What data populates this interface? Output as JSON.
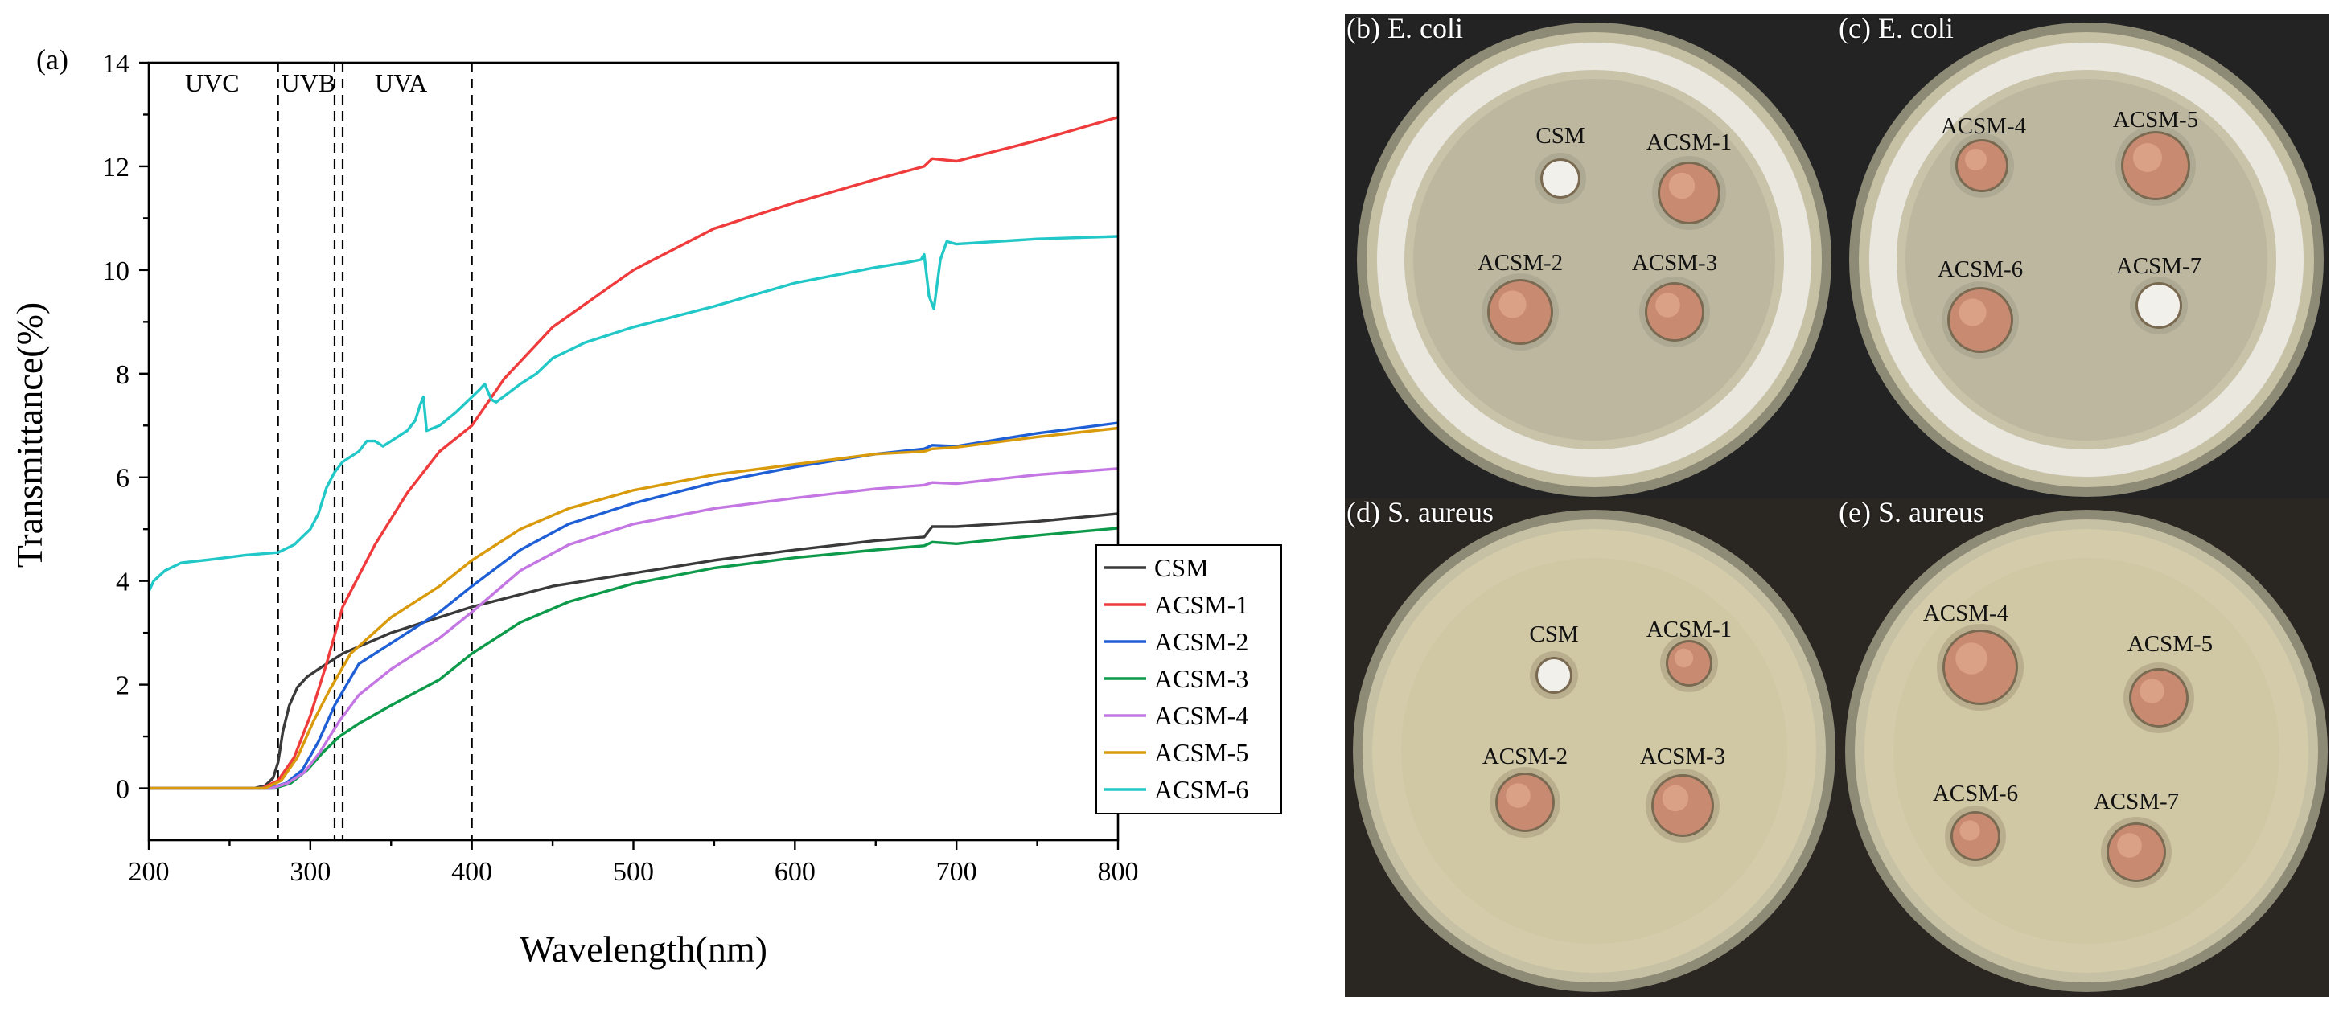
{
  "figure": {
    "panel_a_label": "(a)",
    "photos": [
      {
        "id": "b",
        "label": "(b) E. coli",
        "bacteria": "E. coli",
        "style": "ecoli",
        "samples": [
          "CSM",
          "ACSM-1",
          "ACSM-2",
          "ACSM-3"
        ]
      },
      {
        "id": "c",
        "label": "(c) E. coli",
        "bacteria": "E. coli",
        "style": "ecoli",
        "samples": [
          "ACSM-4",
          "ACSM-5",
          "ACSM-6",
          "ACSM-7"
        ]
      },
      {
        "id": "d",
        "label": "(d)  S. aureus",
        "bacteria": "S. aureus",
        "style": "saureus",
        "samples": [
          "CSM",
          "ACSM-1",
          "ACSM-2",
          "ACSM-3"
        ]
      },
      {
        "id": "e",
        "label": "(e) S. aureus",
        "bacteria": "S. aureus",
        "style": "saureus",
        "samples": [
          "ACSM-4",
          "ACSM-5",
          "ACSM-6",
          "ACSM-7"
        ]
      }
    ]
  },
  "colors": {
    "CSM": "#3a3a3a",
    "ACSM-1": "#ef3b3b",
    "ACSM-2": "#1f5fd6",
    "ACSM-3": "#0d9a4a",
    "ACSM-4": "#c477e3",
    "ACSM-5": "#d99a0b",
    "ACSM-6": "#22c8c8"
  },
  "chart_data": {
    "type": "line",
    "title": "",
    "xlabel": "Wavelength(nm)",
    "ylabel": "Transmittance(%)",
    "xlim": [
      200,
      800
    ],
    "ylim": [
      -1,
      14
    ],
    "xticks": [
      200,
      300,
      400,
      500,
      600,
      700,
      800
    ],
    "yticks": [
      0,
      2,
      4,
      6,
      8,
      10,
      12,
      14
    ],
    "grid": false,
    "legend_position": "bottom-right",
    "regions": [
      {
        "label": "UVC",
        "from": 200,
        "to": 280
      },
      {
        "label": "UVB",
        "from": 280,
        "to": 315
      },
      {
        "label": "UVA",
        "from": 320,
        "to": 400
      }
    ],
    "dashed_lines_x": [
      280,
      315,
      320,
      400
    ],
    "series": [
      {
        "name": "CSM",
        "x": [
          200,
          265,
          272,
          277,
          280,
          283,
          287,
          292,
          298,
          305,
          320,
          350,
          400,
          450,
          500,
          550,
          600,
          650,
          680,
          685,
          700,
          750,
          800
        ],
        "y": [
          0,
          0,
          0.05,
          0.2,
          0.5,
          1.1,
          1.6,
          1.95,
          2.15,
          2.3,
          2.6,
          3.0,
          3.5,
          3.9,
          4.15,
          4.4,
          4.6,
          4.78,
          4.85,
          5.05,
          5.05,
          5.15,
          5.3
        ]
      },
      {
        "name": "ACSM-1",
        "x": [
          200,
          270,
          280,
          290,
          300,
          310,
          320,
          340,
          360,
          380,
          400,
          420,
          450,
          500,
          550,
          600,
          650,
          680,
          685,
          700,
          750,
          800
        ],
        "y": [
          0,
          0,
          0.15,
          0.6,
          1.4,
          2.4,
          3.5,
          4.7,
          5.7,
          6.5,
          7.0,
          7.9,
          8.9,
          10.0,
          10.8,
          11.3,
          11.75,
          12.0,
          12.15,
          12.1,
          12.5,
          12.95
        ]
      },
      {
        "name": "ACSM-2",
        "x": [
          200,
          275,
          285,
          295,
          305,
          315,
          330,
          350,
          380,
          400,
          430,
          460,
          500,
          550,
          600,
          650,
          680,
          685,
          700,
          750,
          800
        ],
        "y": [
          0,
          0,
          0.1,
          0.35,
          0.9,
          1.6,
          2.4,
          2.8,
          3.4,
          3.9,
          4.6,
          5.1,
          5.5,
          5.9,
          6.2,
          6.45,
          6.55,
          6.62,
          6.6,
          6.85,
          7.05
        ]
      },
      {
        "name": "ACSM-3",
        "x": [
          200,
          278,
          288,
          298,
          308,
          318,
          330,
          350,
          380,
          400,
          430,
          460,
          500,
          550,
          600,
          650,
          680,
          685,
          700,
          750,
          800
        ],
        "y": [
          0,
          0,
          0.1,
          0.35,
          0.7,
          1.0,
          1.25,
          1.6,
          2.1,
          2.6,
          3.2,
          3.6,
          3.95,
          4.25,
          4.45,
          4.6,
          4.68,
          4.75,
          4.72,
          4.88,
          5.02
        ]
      },
      {
        "name": "ACSM-4",
        "x": [
          200,
          276,
          286,
          296,
          306,
          318,
          330,
          350,
          380,
          400,
          430,
          460,
          500,
          550,
          600,
          650,
          680,
          685,
          700,
          750,
          800
        ],
        "y": [
          0,
          0,
          0.1,
          0.3,
          0.7,
          1.3,
          1.8,
          2.3,
          2.9,
          3.4,
          4.2,
          4.7,
          5.1,
          5.4,
          5.6,
          5.78,
          5.85,
          5.9,
          5.88,
          6.05,
          6.17
        ]
      },
      {
        "name": "ACSM-5",
        "x": [
          200,
          272,
          282,
          292,
          302,
          312,
          325,
          350,
          380,
          400,
          430,
          460,
          500,
          550,
          600,
          650,
          680,
          685,
          700,
          750,
          800
        ],
        "y": [
          0,
          0,
          0.15,
          0.6,
          1.3,
          1.9,
          2.6,
          3.3,
          3.9,
          4.4,
          5.0,
          5.4,
          5.75,
          6.05,
          6.25,
          6.45,
          6.5,
          6.55,
          6.58,
          6.78,
          6.95
        ]
      },
      {
        "name": "ACSM-6",
        "x": [
          200,
          203,
          210,
          220,
          240,
          260,
          280,
          290,
          300,
          305,
          310,
          315,
          320,
          330,
          335,
          340,
          345,
          350,
          360,
          365,
          368,
          370,
          372,
          380,
          390,
          400,
          405,
          408,
          412,
          415,
          430,
          440,
          450,
          470,
          500,
          550,
          600,
          650,
          670,
          678,
          680,
          683,
          686,
          690,
          694,
          700,
          750,
          800
        ],
        "y": [
          3.8,
          4.0,
          4.2,
          4.35,
          4.42,
          4.5,
          4.55,
          4.7,
          5.0,
          5.3,
          5.8,
          6.1,
          6.3,
          6.5,
          6.7,
          6.7,
          6.6,
          6.7,
          6.9,
          7.1,
          7.4,
          7.55,
          6.9,
          7.0,
          7.25,
          7.55,
          7.7,
          7.8,
          7.5,
          7.45,
          7.8,
          8.0,
          8.3,
          8.6,
          8.9,
          9.3,
          9.75,
          10.05,
          10.15,
          10.2,
          10.3,
          9.5,
          9.25,
          10.2,
          10.55,
          10.5,
          10.6,
          10.65
        ]
      }
    ]
  }
}
